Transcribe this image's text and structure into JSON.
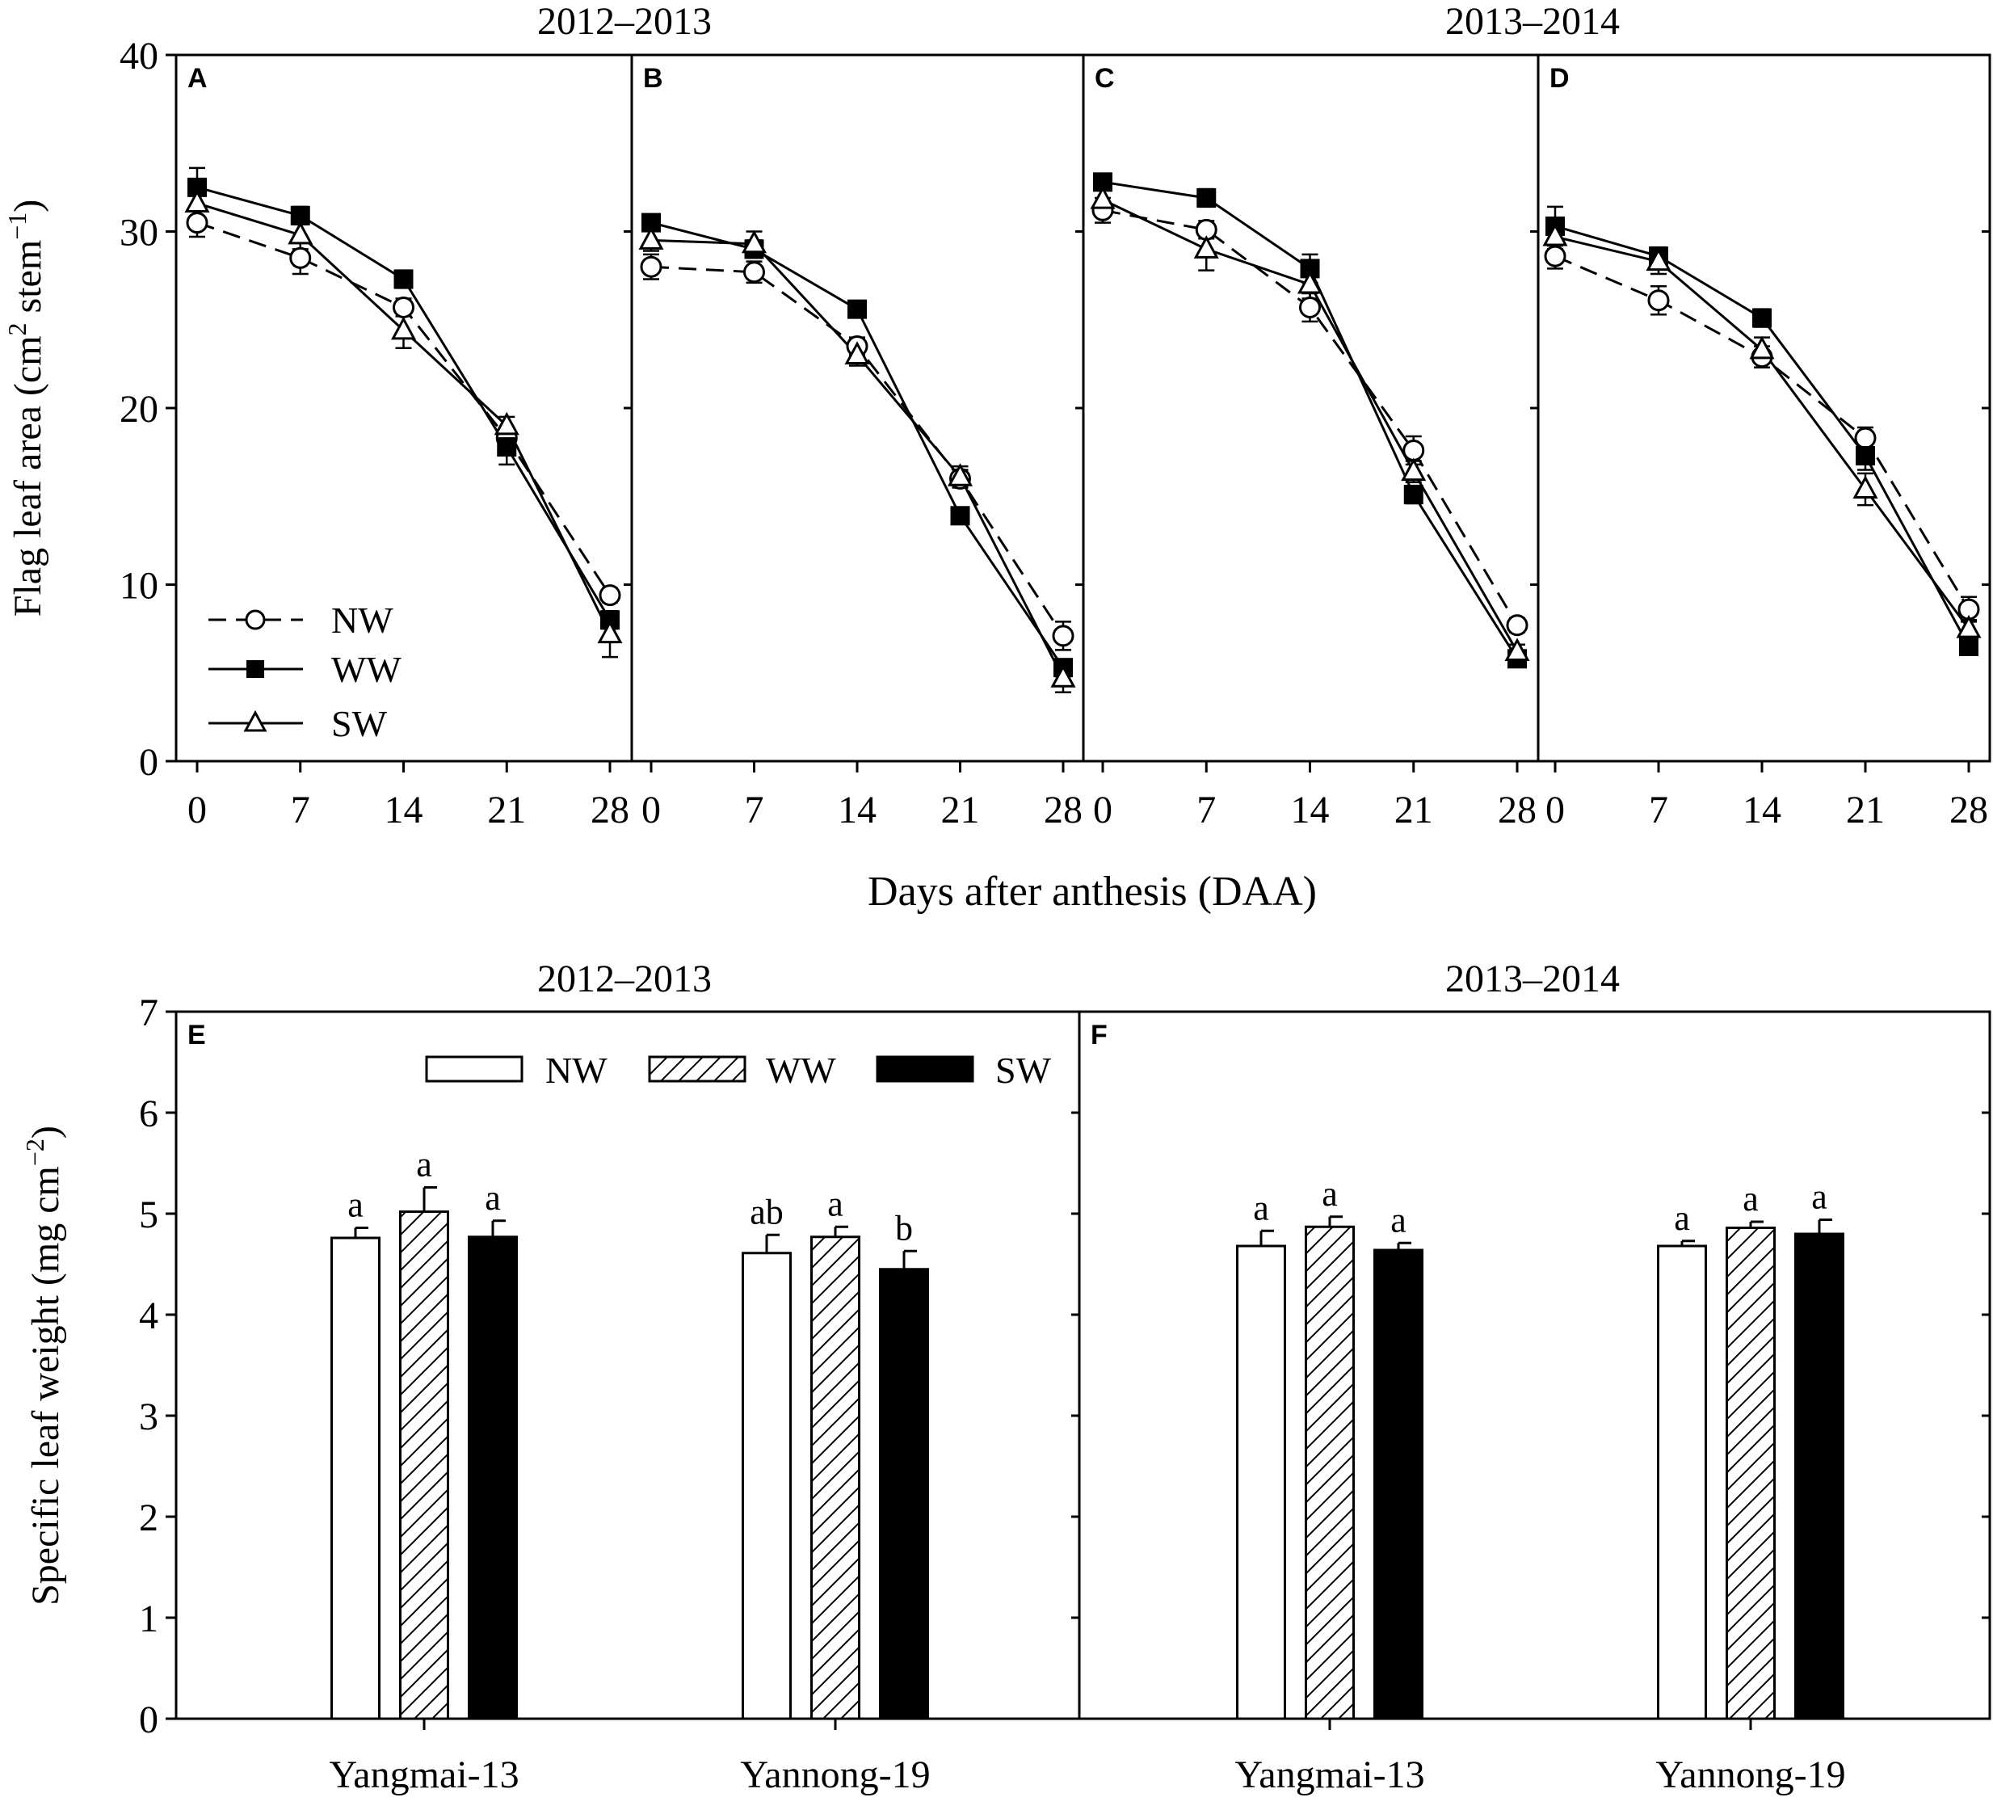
{
  "figure": {
    "line_xlabel": "Days after anthesis (DAA)",
    "line_ylabel_main": "Flag leaf area (cm",
    "line_ylabel_sup1": "2",
    "line_ylabel_mid": " stem",
    "line_ylabel_sup2": "−1",
    "line_ylabel_end": ")",
    "bar_ylabel_main": "Specific leaf weight (mg cm",
    "bar_ylabel_sup": "−2",
    "bar_ylabel_end": ")",
    "year1": "2012–2013",
    "year2": "2013–2014"
  },
  "legend": {
    "lines": [
      {
        "label": "NW",
        "marker": "open-circle-icon",
        "dash": true
      },
      {
        "label": "WW",
        "marker": "filled-square-icon",
        "dash": false
      },
      {
        "label": "SW",
        "marker": "open-triangle-icon",
        "dash": false
      }
    ],
    "bars": [
      {
        "label": "NW",
        "fill": "white"
      },
      {
        "label": "WW",
        "fill": "hatched"
      },
      {
        "label": "SW",
        "fill": "black"
      }
    ]
  },
  "chart_data": [
    {
      "panel": "A",
      "type": "line",
      "year": "2012–2013",
      "x": [
        0,
        7,
        14,
        21,
        28
      ],
      "xticks": [
        "0",
        "7",
        "14",
        "21",
        "28"
      ],
      "ylim": [
        0,
        40
      ],
      "yticks": [
        "0",
        "10",
        "20",
        "30",
        "40"
      ],
      "series": [
        {
          "name": "NW",
          "values": [
            30.5,
            28.5,
            25.7,
            18.3,
            9.4
          ],
          "err": [
            0.8,
            0.9,
            0.5,
            0.5,
            0.4
          ]
        },
        {
          "name": "WW",
          "values": [
            32.5,
            30.9,
            27.3,
            17.8,
            8.0
          ],
          "err": [
            1.1,
            0.5,
            0.5,
            1.0,
            0.5
          ]
        },
        {
          "name": "SW",
          "values": [
            31.6,
            29.8,
            24.4,
            19.0,
            7.2
          ],
          "err": [
            0.8,
            0.8,
            1.0,
            0.5,
            1.3
          ]
        }
      ]
    },
    {
      "panel": "B",
      "type": "line",
      "year": "2012–2013",
      "x": [
        0,
        7,
        14,
        21,
        28
      ],
      "xticks": [
        "0",
        "7",
        "14",
        "21",
        "28"
      ],
      "ylim": [
        0,
        40
      ],
      "series": [
        {
          "name": "NW",
          "values": [
            28.0,
            27.7,
            23.5,
            16.0,
            7.1
          ],
          "err": [
            0.7,
            0.6,
            0.5,
            0.5,
            0.8
          ]
        },
        {
          "name": "WW",
          "values": [
            30.5,
            29.0,
            25.6,
            13.9,
            5.3
          ],
          "err": [
            0.4,
            0.5,
            0.4,
            0.4,
            0.4
          ]
        },
        {
          "name": "SW",
          "values": [
            29.5,
            29.3,
            23.0,
            16.1,
            4.7
          ],
          "err": [
            0.6,
            0.7,
            0.6,
            0.6,
            0.8
          ]
        }
      ]
    },
    {
      "panel": "C",
      "type": "line",
      "year": "2013–2014",
      "x": [
        0,
        7,
        14,
        21,
        28
      ],
      "xticks": [
        "0",
        "7",
        "14",
        "21",
        "28"
      ],
      "ylim": [
        0,
        40
      ],
      "series": [
        {
          "name": "NW",
          "values": [
            31.2,
            30.1,
            25.7,
            17.6,
            7.7
          ],
          "err": [
            0.7,
            0.5,
            0.8,
            0.8,
            0.4
          ]
        },
        {
          "name": "WW",
          "values": [
            32.8,
            31.9,
            27.9,
            15.1,
            5.8
          ],
          "err": [
            0.4,
            0.5,
            0.8,
            0.5,
            0.4
          ]
        },
        {
          "name": "SW",
          "values": [
            31.8,
            29.0,
            27.0,
            16.4,
            6.2
          ],
          "err": [
            0.7,
            1.2,
            0.8,
            0.6,
            0.4
          ]
        }
      ]
    },
    {
      "panel": "D",
      "type": "line",
      "year": "2013–2014",
      "x": [
        0,
        7,
        14,
        21,
        28
      ],
      "xticks": [
        "0",
        "7",
        "14",
        "21",
        "28"
      ],
      "ylim": [
        0,
        40
      ],
      "series": [
        {
          "name": "NW",
          "values": [
            28.6,
            26.1,
            22.9,
            18.3,
            8.6
          ],
          "err": [
            0.7,
            0.8,
            0.6,
            0.6,
            0.7
          ]
        },
        {
          "name": "WW",
          "values": [
            30.3,
            28.6,
            25.1,
            17.3,
            6.5
          ],
          "err": [
            1.1,
            0.5,
            0.5,
            0.8,
            0.4
          ]
        },
        {
          "name": "SW",
          "values": [
            29.7,
            28.3,
            23.3,
            15.4,
            7.5
          ],
          "err": [
            0.7,
            0.7,
            0.7,
            0.9,
            0.5
          ]
        }
      ]
    },
    {
      "panel": "E",
      "type": "bar",
      "year": "2012–2013",
      "categories": [
        "Yangmai-13",
        "Yannong-19"
      ],
      "ylim": [
        0,
        7
      ],
      "yticks": [
        "0",
        "1",
        "2",
        "3",
        "4",
        "5",
        "6",
        "7"
      ],
      "series": [
        {
          "name": "NW",
          "values": [
            4.76,
            4.61
          ],
          "err": [
            0.1,
            0.18
          ],
          "letters": [
            "a",
            "ab"
          ]
        },
        {
          "name": "WW",
          "values": [
            5.02,
            4.77
          ],
          "err": [
            0.24,
            0.1
          ],
          "letters": [
            "a",
            "a"
          ]
        },
        {
          "name": "SW",
          "values": [
            4.77,
            4.45
          ],
          "err": [
            0.16,
            0.18
          ],
          "letters": [
            "a",
            "b"
          ]
        }
      ]
    },
    {
      "panel": "F",
      "type": "bar",
      "year": "2013–2014",
      "categories": [
        "Yangmai-13",
        "Yannong-19"
      ],
      "ylim": [
        0,
        7
      ],
      "series": [
        {
          "name": "NW",
          "values": [
            4.68,
            4.68
          ],
          "err": [
            0.15,
            0.05
          ],
          "letters": [
            "a",
            "a"
          ]
        },
        {
          "name": "WW",
          "values": [
            4.87,
            4.86
          ],
          "err": [
            0.1,
            0.06
          ],
          "letters": [
            "a",
            "a"
          ]
        },
        {
          "name": "SW",
          "values": [
            4.64,
            4.8
          ],
          "err": [
            0.07,
            0.14
          ],
          "letters": [
            "a",
            "a"
          ]
        }
      ]
    }
  ]
}
